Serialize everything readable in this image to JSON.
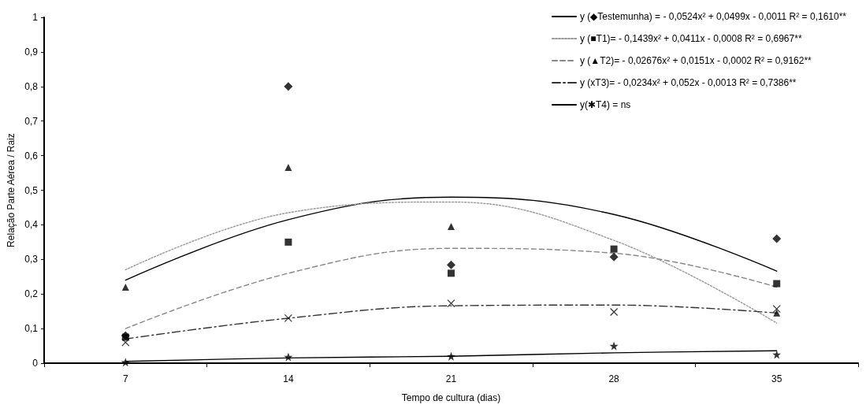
{
  "chart_data": {
    "type": "scatter",
    "xlabel": "Tempo de cultura (dias)",
    "ylabel": "Relação Parte Aérea / Raiz",
    "categories": [
      "7",
      "14",
      "21",
      "28",
      "35"
    ],
    "ylim": [
      0,
      1
    ],
    "yticks": [
      0,
      {
        "value": 0.1,
        "label": "0,1"
      },
      {
        "value": 0.2,
        "label": "0,2"
      },
      {
        "value": 0.3,
        "label": "0,3"
      },
      {
        "value": 0.4,
        "label": "0,4"
      },
      {
        "value": 0.5,
        "label": "0,5"
      },
      {
        "value": 0.6,
        "label": "0,6"
      },
      {
        "value": 0.7,
        "label": "0,7"
      },
      {
        "value": 0.8,
        "label": "0,8"
      },
      {
        "value": 0.9,
        "label": "0,9"
      },
      1
    ],
    "grid": false,
    "legend": "top right",
    "series": [
      {
        "type": "line",
        "name": "y (◆Testemunha) = - 0,0524x² + 0,0499x - 0,0011 R² = 0,1610**",
        "color": "#000000",
        "line_style": "solid",
        "marker": "none",
        "values": [
          0.24,
          0.415,
          0.48,
          0.43,
          0.266
        ]
      },
      {
        "type": "line",
        "name": "y (■T1)= - 0,1439x² + 0,0411x - 0,0008 R² = 0,6967**",
        "color": "#999999",
        "line_style": "dotted",
        "marker": "none",
        "values": [
          0.27,
          0.435,
          0.466,
          0.355,
          0.116
        ]
      },
      {
        "type": "line",
        "name": "y (▲T2)= - 0,02676x² + 0,0151x - 0,0002 R² = 0,9162**",
        "color": "#888888",
        "line_style": "dashed",
        "marker": "none",
        "values": [
          0.1,
          0.26,
          0.332,
          0.318,
          0.22
        ]
      },
      {
        "type": "line",
        "name": "y (xT3)= - 0,0234x² + 0,052x - 0,0013 R² = 0,7386**",
        "color": "#333333",
        "line_style": "dashdot",
        "marker": "none",
        "values": [
          0.07,
          0.13,
          0.166,
          0.168,
          0.145
        ]
      },
      {
        "type": "line",
        "name": "y(✱T4) = ns",
        "color": "#000000",
        "line_style": "solid",
        "marker": "none",
        "values": [
          0.005,
          0.015,
          0.02,
          0.03,
          0.036
        ]
      },
      {
        "type": "scatter",
        "color": "#000000",
        "marker": "diamond",
        "values": [
          0.08,
          0.8,
          0.284,
          0.307,
          0.36
        ]
      },
      {
        "type": "scatter",
        "color": "#000000",
        "marker": "square",
        "values": [
          0.075,
          0.35,
          0.26,
          0.33,
          0.23
        ]
      },
      {
        "type": "scatter",
        "color": "#000000",
        "marker": "triangle",
        "values": [
          0.22,
          0.566,
          0.395,
          null,
          0.145
        ]
      },
      {
        "type": "scatter",
        "color": "#000000",
        "marker": "cross",
        "values": [
          0.06,
          0.13,
          0.173,
          0.148,
          0.157
        ]
      },
      {
        "type": "scatter",
        "color": "#000000",
        "marker": "star",
        "values": [
          0.003,
          0.018,
          0.02,
          0.05,
          0.025
        ]
      }
    ]
  }
}
